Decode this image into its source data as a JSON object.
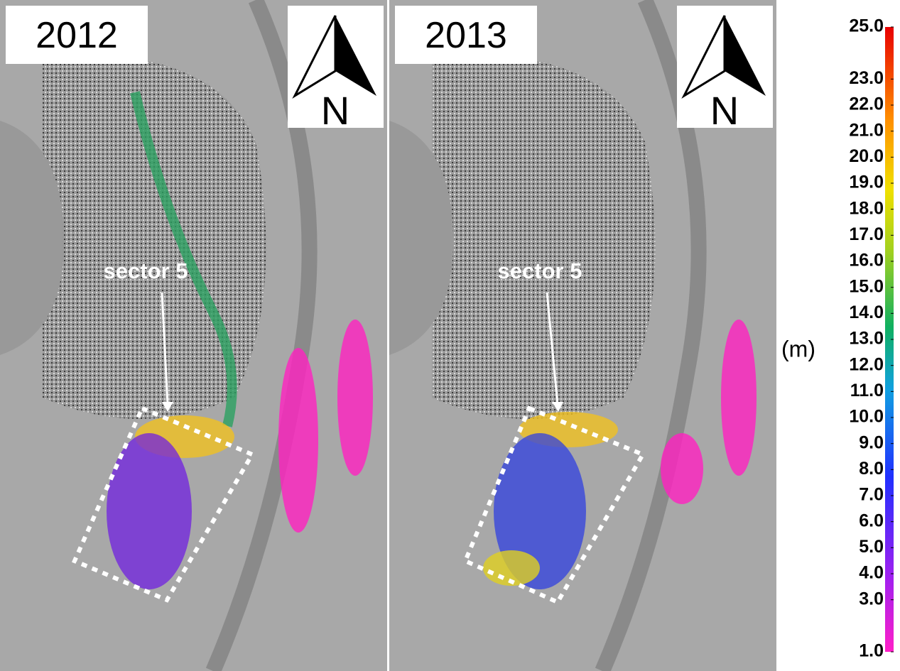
{
  "panels": [
    {
      "year": "2012",
      "north": "N",
      "annotation": "sector 5"
    },
    {
      "year": "2013",
      "north": "N",
      "annotation": "sector 5"
    }
  ],
  "colorbar": {
    "unit": "(m)",
    "range": [
      1,
      25
    ],
    "ticks": [
      {
        "value": 25,
        "label": "25.0"
      },
      {
        "value": 23,
        "label": "23.0"
      },
      {
        "value": 22,
        "label": "22.0"
      },
      {
        "value": 21,
        "label": "21.0"
      },
      {
        "value": 20,
        "label": "20.0"
      },
      {
        "value": 19,
        "label": "19.0"
      },
      {
        "value": 18,
        "label": "18.0"
      },
      {
        "value": 17,
        "label": "17.0"
      },
      {
        "value": 16,
        "label": "16.0"
      },
      {
        "value": 15,
        "label": "15.0"
      },
      {
        "value": 14,
        "label": "14.0"
      },
      {
        "value": 13,
        "label": "13.0"
      },
      {
        "value": 12,
        "label": "12.0"
      },
      {
        "value": 11,
        "label": "11.0"
      },
      {
        "value": 10,
        "label": "10.0"
      },
      {
        "value": 9,
        "label": "9.0"
      },
      {
        "value": 8,
        "label": "8.0"
      },
      {
        "value": 7,
        "label": "7.0"
      },
      {
        "value": 6,
        "label": "6.0"
      },
      {
        "value": 5,
        "label": "5.0"
      },
      {
        "value": 4,
        "label": "4.0"
      },
      {
        "value": 3,
        "label": "3.0"
      },
      {
        "value": 1,
        "label": "1.0"
      }
    ]
  }
}
